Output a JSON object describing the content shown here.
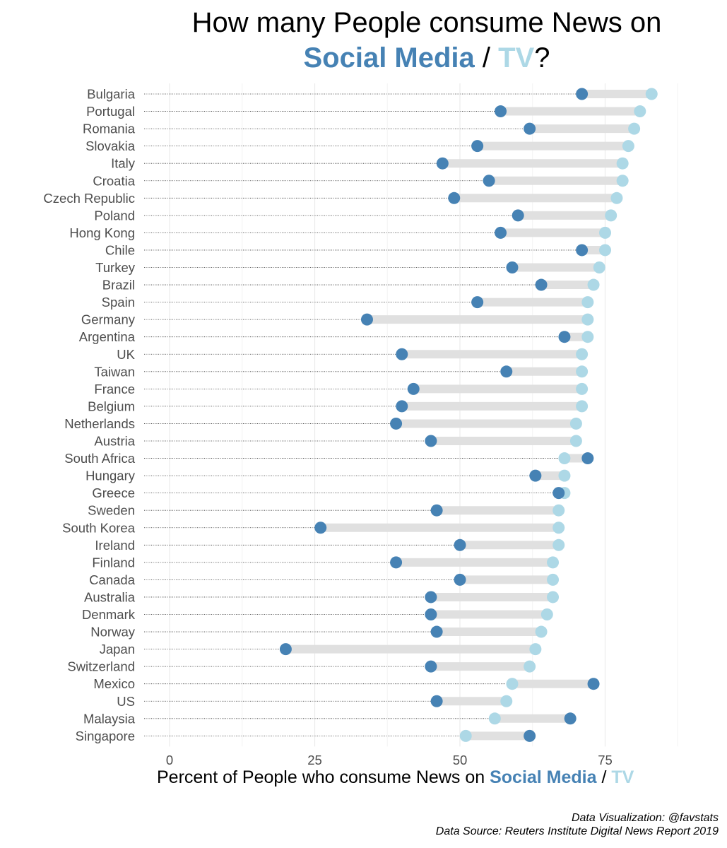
{
  "title": {
    "line1": "How many People consume News on",
    "social_media": "Social Media",
    "separator": " / ",
    "tv": "TV",
    "suffix": "?"
  },
  "xlabel": {
    "prefix": "Percent of People who consume News on ",
    "social_media": "Social Media",
    "separator": " / ",
    "tv": "TV"
  },
  "credits": {
    "line1": "Data Visualization: @favstats",
    "line2": "Data Source: Reuters Institute Digital News Report 2019"
  },
  "colors": {
    "social_media": "#4682B4",
    "tv": "#ADD8E6",
    "segment": "#E0E0E0",
    "grid": "#EBEBEB",
    "label": "#4D4D4D"
  },
  "chart_data": {
    "type": "dumbbell",
    "title": "How many People consume News on Social Media / TV?",
    "xlabel": "Percent of People who consume News on Social Media / TV",
    "ylabel": "",
    "xlim": [
      -4,
      95
    ],
    "xticks": [
      0,
      25,
      50,
      75
    ],
    "legend": "in title",
    "series": [
      {
        "name": "Social Media",
        "color": "#4682B4"
      },
      {
        "name": "TV",
        "color": "#ADD8E6"
      }
    ],
    "countries": [
      {
        "country": "Bulgaria",
        "social_media": 71,
        "tv": 83
      },
      {
        "country": "Portugal",
        "social_media": 57,
        "tv": 81
      },
      {
        "country": "Romania",
        "social_media": 62,
        "tv": 80
      },
      {
        "country": "Slovakia",
        "social_media": 53,
        "tv": 79
      },
      {
        "country": "Italy",
        "social_media": 47,
        "tv": 78
      },
      {
        "country": "Croatia",
        "social_media": 55,
        "tv": 78
      },
      {
        "country": "Czech Republic",
        "social_media": 49,
        "tv": 77
      },
      {
        "country": "Poland",
        "social_media": 60,
        "tv": 76
      },
      {
        "country": "Hong Kong",
        "social_media": 57,
        "tv": 75
      },
      {
        "country": "Chile",
        "social_media": 71,
        "tv": 75
      },
      {
        "country": "Turkey",
        "social_media": 59,
        "tv": 74
      },
      {
        "country": "Brazil",
        "social_media": 64,
        "tv": 73
      },
      {
        "country": "Spain",
        "social_media": 53,
        "tv": 72
      },
      {
        "country": "Germany",
        "social_media": 34,
        "tv": 72
      },
      {
        "country": "Argentina",
        "social_media": 68,
        "tv": 72
      },
      {
        "country": "UK",
        "social_media": 40,
        "tv": 71
      },
      {
        "country": "Taiwan",
        "social_media": 58,
        "tv": 71
      },
      {
        "country": "France",
        "social_media": 42,
        "tv": 71
      },
      {
        "country": "Belgium",
        "social_media": 40,
        "tv": 71
      },
      {
        "country": "Netherlands",
        "social_media": 39,
        "tv": 70
      },
      {
        "country": "Austria",
        "social_media": 45,
        "tv": 70
      },
      {
        "country": "South Africa",
        "social_media": 72,
        "tv": 68
      },
      {
        "country": "Hungary",
        "social_media": 63,
        "tv": 68
      },
      {
        "country": "Greece",
        "social_media": 67,
        "tv": 68
      },
      {
        "country": "Sweden",
        "social_media": 46,
        "tv": 67
      },
      {
        "country": "South Korea",
        "social_media": 26,
        "tv": 67
      },
      {
        "country": "Ireland",
        "social_media": 50,
        "tv": 67
      },
      {
        "country": "Finland",
        "social_media": 39,
        "tv": 66
      },
      {
        "country": "Canada",
        "social_media": 50,
        "tv": 66
      },
      {
        "country": "Australia",
        "social_media": 45,
        "tv": 66
      },
      {
        "country": "Denmark",
        "social_media": 45,
        "tv": 65
      },
      {
        "country": "Norway",
        "social_media": 46,
        "tv": 64
      },
      {
        "country": "Japan",
        "social_media": 20,
        "tv": 63
      },
      {
        "country": "Switzerland",
        "social_media": 45,
        "tv": 62
      },
      {
        "country": "Mexico",
        "social_media": 73,
        "tv": 59
      },
      {
        "country": "US",
        "social_media": 46,
        "tv": 58
      },
      {
        "country": "Malaysia",
        "social_media": 69,
        "tv": 56
      },
      {
        "country": "Singapore",
        "social_media": 62,
        "tv": 51
      }
    ]
  }
}
